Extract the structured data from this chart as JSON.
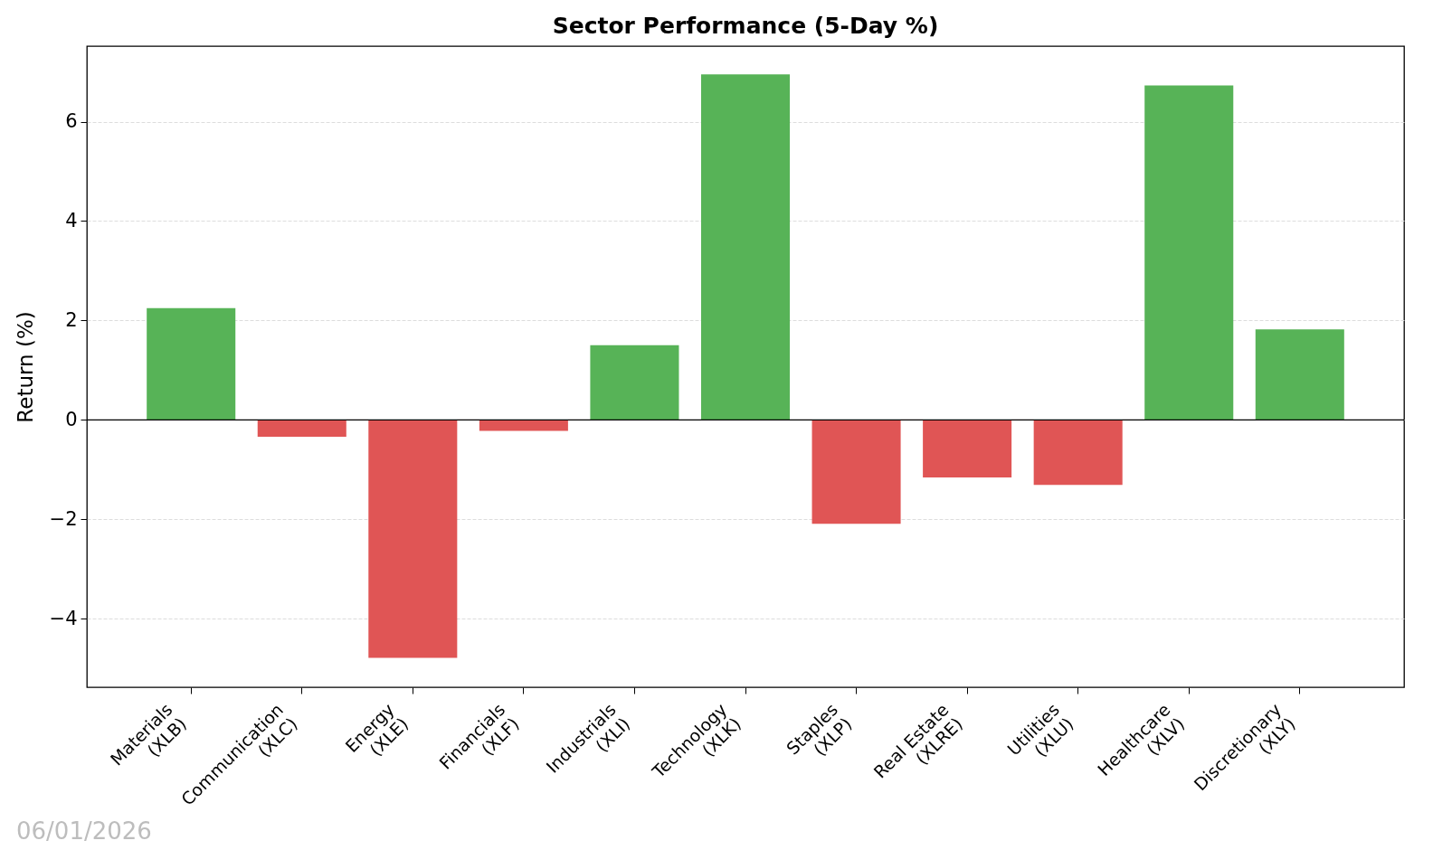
{
  "chart_data": {
    "type": "bar",
    "title": "Sector Performance (5-Day %)",
    "ylabel": "Return (%)",
    "categories": [
      "Materials\n(XLB)",
      "Communication\n(XLC)",
      "Energy\n(XLE)",
      "Financials\n(XLF)",
      "Industrials\n(XLI)",
      "Technology\n(XLK)",
      "Staples\n(XLP)",
      "Real Estate\n(XLRE)",
      "Utilities\n(XLU)",
      "Healthcare\n(XLV)",
      "Discretionary\n(XLY)"
    ],
    "values": [
      2.25,
      -0.34,
      -4.79,
      -0.22,
      1.5,
      6.95,
      -2.09,
      -1.16,
      -1.31,
      6.73,
      1.82
    ],
    "colors": [
      "#57b357",
      "#e05555",
      "#e05555",
      "#e05555",
      "#57b357",
      "#57b357",
      "#e05555",
      "#e05555",
      "#e05555",
      "#57b357",
      "#57b357"
    ],
    "ylim": [
      -5.38,
      7.52
    ],
    "yticks": [
      {
        "value": -4,
        "label": "−4"
      },
      {
        "value": -2,
        "label": "−2"
      },
      0,
      2,
      4,
      6
    ],
    "grid": "y",
    "ref_lines": [
      {
        "axis": "y",
        "value": 0,
        "color": "#000000"
      }
    ],
    "annotations": [
      "06/01/2026"
    ]
  }
}
